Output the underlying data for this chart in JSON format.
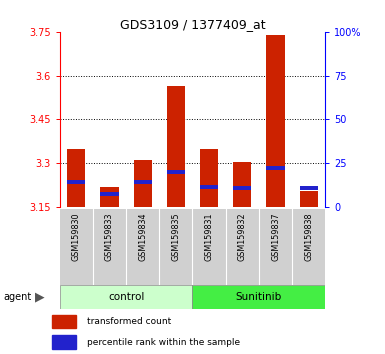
{
  "title": "GDS3109 / 1377409_at",
  "samples": [
    "GSM159830",
    "GSM159833",
    "GSM159834",
    "GSM159835",
    "GSM159831",
    "GSM159832",
    "GSM159837",
    "GSM159838"
  ],
  "transformed_counts": [
    3.35,
    3.22,
    3.31,
    3.565,
    3.35,
    3.305,
    3.74,
    3.205
  ],
  "percentile_values": [
    3.235,
    3.195,
    3.235,
    3.27,
    3.22,
    3.215,
    3.285,
    3.215
  ],
  "ymin": 3.15,
  "ymax": 3.75,
  "yticks": [
    3.15,
    3.3,
    3.45,
    3.6,
    3.75
  ],
  "ytick_labels": [
    "3.15",
    "3.3",
    "3.45",
    "3.6",
    "3.75"
  ],
  "right_yticks": [
    0,
    25,
    50,
    75,
    100
  ],
  "right_ytick_labels": [
    "0",
    "25",
    "50",
    "75",
    "100%"
  ],
  "bar_color": "#cc2200",
  "percentile_color": "#2222cc",
  "bar_width": 0.55,
  "control_color": "#ccffcc",
  "sunitinib_color": "#44ee44",
  "sample_bg_color": "#d0d0d0",
  "legend_red_label": "transformed count",
  "legend_blue_label": "percentile rank within the sample",
  "grid_yticks": [
    3.3,
    3.45,
    3.6
  ]
}
